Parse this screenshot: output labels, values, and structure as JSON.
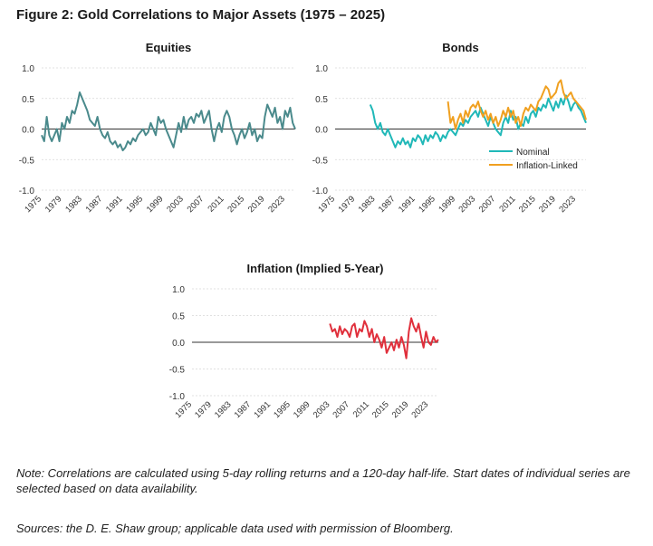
{
  "figure_title": "Figure 2: Gold Correlations to Major Assets (1975 – 2025)",
  "note": "Note: Correlations are calculated using 5-day rolling returns and a 120-day half-life. Start dates of individual series are selected based on data availability.",
  "sources": "Sources: the D. E. Shaw group; applicable data used with permission of Bloomberg.",
  "chart_data": [
    {
      "type": "line",
      "title": "Equities",
      "xlabel": "",
      "ylabel": "",
      "ylim": [
        -1.0,
        1.0
      ],
      "xlim": [
        1975,
        2025
      ],
      "yticks": [
        "1.0",
        "0.5",
        "0.0",
        "-0.5",
        "-1.0"
      ],
      "xticks": [
        "1975",
        "1979",
        "1983",
        "1987",
        "1991",
        "1995",
        "1999",
        "2003",
        "2007",
        "2011",
        "2015",
        "2019",
        "2023"
      ],
      "grid": true,
      "series": [
        {
          "name": "",
          "color": "#4a8a8c",
          "x": [
            1975,
            1975.5,
            1976,
            1976.5,
            1977,
            1977.5,
            1978,
            1978.5,
            1979,
            1979.5,
            1980,
            1980.5,
            1981,
            1981.5,
            1982,
            1982.5,
            1983,
            1983.5,
            1984,
            1984.5,
            1985,
            1985.5,
            1986,
            1986.5,
            1987,
            1987.5,
            1988,
            1988.5,
            1989,
            1989.5,
            1990,
            1990.5,
            1991,
            1991.5,
            1992,
            1992.5,
            1993,
            1993.5,
            1994,
            1994.5,
            1995,
            1995.5,
            1996,
            1996.5,
            1997,
            1997.5,
            1998,
            1998.5,
            1999,
            1999.5,
            2000,
            2000.5,
            2001,
            2001.5,
            2002,
            2002.5,
            2003,
            2003.5,
            2004,
            2004.5,
            2005,
            2005.5,
            2006,
            2006.5,
            2007,
            2007.5,
            2008,
            2008.5,
            2009,
            2009.5,
            2010,
            2010.5,
            2011,
            2011.5,
            2012,
            2012.5,
            2013,
            2013.5,
            2014,
            2014.5,
            2015,
            2015.5,
            2016,
            2016.5,
            2017,
            2017.5,
            2018,
            2018.5,
            2019,
            2019.5,
            2020,
            2020.5,
            2021,
            2021.5,
            2022,
            2022.5,
            2023,
            2023.5,
            2024,
            2024.5,
            2025
          ],
          "y": [
            -0.1,
            -0.2,
            0.2,
            -0.1,
            -0.2,
            -0.1,
            0.0,
            -0.2,
            0.1,
            0.0,
            0.2,
            0.1,
            0.3,
            0.25,
            0.4,
            0.6,
            0.5,
            0.4,
            0.3,
            0.15,
            0.1,
            0.05,
            0.2,
            0.0,
            -0.1,
            -0.15,
            -0.05,
            -0.2,
            -0.25,
            -0.2,
            -0.3,
            -0.25,
            -0.35,
            -0.3,
            -0.2,
            -0.25,
            -0.15,
            -0.2,
            -0.1,
            -0.05,
            0.0,
            -0.1,
            -0.05,
            0.1,
            0.0,
            -0.1,
            0.2,
            0.1,
            0.15,
            0.0,
            -0.1,
            -0.2,
            -0.3,
            -0.1,
            0.1,
            -0.05,
            0.2,
            0.0,
            0.15,
            0.2,
            0.1,
            0.25,
            0.2,
            0.3,
            0.1,
            0.2,
            0.3,
            0.0,
            -0.2,
            0.0,
            0.1,
            -0.05,
            0.2,
            0.3,
            0.2,
            0.0,
            -0.1,
            -0.25,
            -0.1,
            0.0,
            -0.15,
            -0.05,
            0.1,
            -0.1,
            0.0,
            -0.2,
            -0.1,
            -0.15,
            0.2,
            0.4,
            0.3,
            0.2,
            0.35,
            0.1,
            0.2,
            0.0,
            0.3,
            0.2,
            0.35,
            0.1,
            0.0
          ]
        }
      ]
    },
    {
      "type": "line",
      "title": "Bonds",
      "xlabel": "",
      "ylabel": "",
      "ylim": [
        -1.0,
        1.0
      ],
      "xlim": [
        1975,
        2025
      ],
      "yticks": [
        "1.0",
        "0.5",
        "0.0",
        "-0.5",
        "-1.0"
      ],
      "xticks": [
        "1975",
        "1979",
        "1983",
        "1987",
        "1991",
        "1995",
        "1999",
        "2003",
        "2007",
        "2011",
        "2015",
        "2019",
        "2023"
      ],
      "grid": true,
      "legend": "bottom-right",
      "series": [
        {
          "name": "Nominal",
          "color": "#20b8b8",
          "x": [
            1982,
            1982.5,
            1983,
            1983.5,
            1984,
            1984.5,
            1985,
            1985.5,
            1986,
            1986.5,
            1987,
            1987.5,
            1988,
            1988.5,
            1989,
            1989.5,
            1990,
            1990.5,
            1991,
            1991.5,
            1992,
            1992.5,
            1993,
            1993.5,
            1994,
            1994.5,
            1995,
            1995.5,
            1996,
            1996.5,
            1997,
            1997.5,
            1998,
            1998.5,
            1999,
            1999.5,
            2000,
            2000.5,
            2001,
            2001.5,
            2002,
            2002.5,
            2003,
            2003.5,
            2004,
            2004.5,
            2005,
            2005.5,
            2006,
            2006.5,
            2007,
            2007.5,
            2008,
            2008.5,
            2009,
            2009.5,
            2010,
            2010.5,
            2011,
            2011.5,
            2012,
            2012.5,
            2013,
            2013.5,
            2014,
            2014.5,
            2015,
            2015.5,
            2016,
            2016.5,
            2017,
            2017.5,
            2018,
            2018.5,
            2019,
            2019.5,
            2020,
            2020.5,
            2021,
            2021.5,
            2022,
            2022.5,
            2023,
            2023.5,
            2024,
            2024.5,
            2025
          ],
          "y": [
            0.4,
            0.3,
            0.1,
            0.0,
            0.1,
            -0.05,
            -0.1,
            0.0,
            -0.1,
            -0.2,
            -0.3,
            -0.2,
            -0.25,
            -0.15,
            -0.25,
            -0.2,
            -0.3,
            -0.15,
            -0.2,
            -0.1,
            -0.15,
            -0.25,
            -0.1,
            -0.2,
            -0.1,
            -0.15,
            -0.05,
            -0.1,
            -0.2,
            -0.1,
            -0.15,
            -0.05,
            0.0,
            -0.05,
            -0.1,
            0.0,
            0.1,
            0.05,
            0.15,
            0.1,
            0.2,
            0.25,
            0.3,
            0.2,
            0.35,
            0.25,
            0.15,
            0.05,
            0.2,
            0.1,
            0.0,
            -0.05,
            -0.1,
            0.1,
            0.2,
            0.1,
            0.3,
            0.15,
            0.2,
            0.0,
            0.1,
            0.05,
            0.2,
            0.1,
            0.25,
            0.3,
            0.2,
            0.35,
            0.3,
            0.4,
            0.35,
            0.5,
            0.4,
            0.3,
            0.45,
            0.35,
            0.5,
            0.4,
            0.55,
            0.45,
            0.3,
            0.4,
            0.45,
            0.35,
            0.3,
            0.2,
            0.1
          ]
        },
        {
          "name": "Inflation-Linked",
          "color": "#f0a020",
          "x": [
            1997.5,
            1998,
            1998.5,
            1999,
            1999.5,
            2000,
            2000.5,
            2001,
            2001.5,
            2002,
            2002.5,
            2003,
            2003.5,
            2004,
            2004.5,
            2005,
            2005.5,
            2006,
            2006.5,
            2007,
            2007.5,
            2008,
            2008.5,
            2009,
            2009.5,
            2010,
            2010.5,
            2011,
            2011.5,
            2012,
            2012.5,
            2013,
            2013.5,
            2014,
            2014.5,
            2015,
            2015.5,
            2016,
            2016.5,
            2017,
            2017.5,
            2018,
            2018.5,
            2019,
            2019.5,
            2020,
            2020.5,
            2021,
            2021.5,
            2022,
            2022.5,
            2023,
            2023.5,
            2024,
            2024.5,
            2025
          ],
          "y": [
            0.45,
            0.1,
            0.2,
            0.0,
            0.15,
            0.25,
            0.1,
            0.3,
            0.2,
            0.35,
            0.4,
            0.35,
            0.45,
            0.3,
            0.2,
            0.3,
            0.15,
            0.25,
            0.1,
            0.2,
            0.05,
            0.15,
            0.3,
            0.2,
            0.35,
            0.2,
            0.3,
            0.1,
            0.2,
            0.05,
            0.25,
            0.35,
            0.3,
            0.4,
            0.35,
            0.3,
            0.45,
            0.5,
            0.6,
            0.7,
            0.65,
            0.5,
            0.55,
            0.6,
            0.75,
            0.8,
            0.6,
            0.5,
            0.55,
            0.6,
            0.5,
            0.45,
            0.4,
            0.35,
            0.3,
            0.15
          ]
        }
      ]
    },
    {
      "type": "line",
      "title": "Inflation (Implied 5-Year)",
      "xlabel": "",
      "ylabel": "",
      "ylim": [
        -1.0,
        1.0
      ],
      "xlim": [
        1975,
        2025
      ],
      "yticks": [
        "1.0",
        "0.5",
        "0.0",
        "-0.5",
        "-1.0"
      ],
      "xticks": [
        "1975",
        "1979",
        "1983",
        "1987",
        "1991",
        "1995",
        "1999",
        "2003",
        "2007",
        "2011",
        "2015",
        "2019",
        "2023"
      ],
      "grid": true,
      "series": [
        {
          "name": "",
          "color": "#e0303c",
          "x": [
            2003,
            2003.5,
            2004,
            2004.5,
            2005,
            2005.5,
            2006,
            2006.5,
            2007,
            2007.5,
            2008,
            2008.5,
            2009,
            2009.5,
            2010,
            2010.5,
            2011,
            2011.5,
            2012,
            2012.5,
            2013,
            2013.5,
            2014,
            2014.5,
            2015,
            2015.5,
            2016,
            2016.5,
            2017,
            2017.5,
            2018,
            2018.5,
            2019,
            2019.5,
            2020,
            2020.5,
            2021,
            2021.5,
            2022,
            2022.5,
            2023,
            2023.5,
            2024,
            2024.5,
            2025
          ],
          "y": [
            0.35,
            0.2,
            0.25,
            0.1,
            0.3,
            0.15,
            0.25,
            0.2,
            0.1,
            0.3,
            0.35,
            0.1,
            0.25,
            0.2,
            0.4,
            0.3,
            0.1,
            0.25,
            0.0,
            0.15,
            0.05,
            -0.1,
            0.1,
            -0.2,
            -0.1,
            0.0,
            -0.15,
            0.05,
            -0.1,
            0.1,
            -0.05,
            -0.3,
            0.2,
            0.45,
            0.3,
            0.2,
            0.35,
            0.1,
            -0.1,
            0.2,
            0.0,
            -0.05,
            0.1,
            0.0,
            0.05
          ]
        }
      ]
    }
  ]
}
